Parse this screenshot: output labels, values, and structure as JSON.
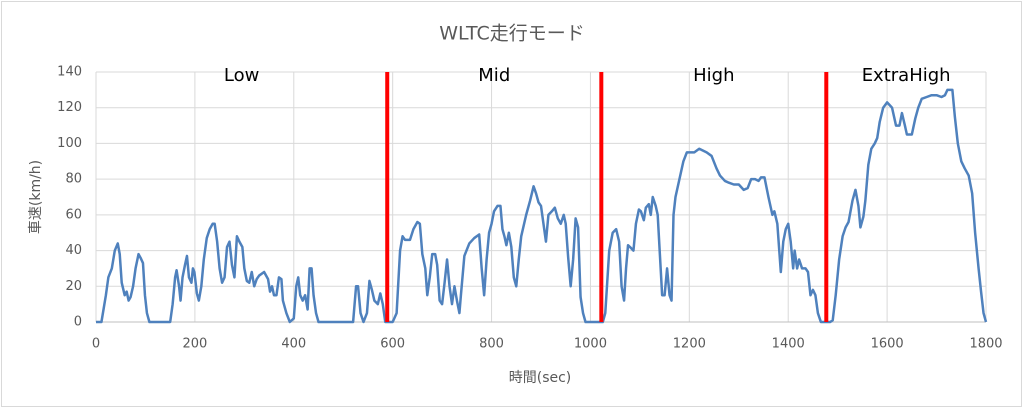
{
  "chart_data": {
    "type": "line",
    "title": "WLTC走行モード",
    "x_label": "時間(sec)",
    "y_label": "車速(km/h)",
    "x": [
      0,
      11,
      20,
      25,
      32,
      38,
      44,
      48,
      52,
      58,
      62,
      66,
      70,
      75,
      80,
      86,
      90,
      95,
      99,
      103,
      108,
      150,
      155,
      160,
      163,
      168,
      171,
      175,
      180,
      184,
      188,
      193,
      196,
      199,
      204,
      208,
      213,
      218,
      224,
      230,
      236,
      240,
      245,
      250,
      255,
      260,
      265,
      270,
      275,
      280,
      285,
      290,
      296,
      300,
      305,
      310,
      315,
      320,
      325,
      330,
      340,
      348,
      352,
      356,
      360,
      365,
      370,
      375,
      378,
      385,
      392,
      400,
      405,
      409,
      413,
      418,
      423,
      428,
      432,
      436,
      440,
      445,
      450,
      520,
      526,
      530,
      535,
      541,
      548,
      553,
      558,
      563,
      570,
      575,
      580,
      585,
      595,
      600,
      608,
      615,
      620,
      625,
      635,
      642,
      650,
      655,
      660,
      666,
      670,
      675,
      680,
      686,
      690,
      695,
      700,
      705,
      710,
      715,
      720,
      725,
      730,
      735,
      738,
      745,
      755,
      765,
      775,
      780,
      785,
      790,
      795,
      800,
      805,
      812,
      818,
      822,
      826,
      830,
      835,
      840,
      845,
      850,
      855,
      860,
      870,
      878,
      885,
      890,
      895,
      900,
      905,
      910,
      915,
      922,
      928,
      934,
      940,
      946,
      950,
      955,
      960,
      965,
      970,
      975,
      980,
      985,
      990,
      1025,
      1030,
      1038,
      1045,
      1052,
      1058,
      1063,
      1068,
      1072,
      1076,
      1080,
      1087,
      1092,
      1098,
      1102,
      1108,
      1112,
      1118,
      1122,
      1126,
      1132,
      1136,
      1140,
      1145,
      1150,
      1155,
      1160,
      1164,
      1168,
      1172,
      1180,
      1188,
      1195,
      1210,
      1220,
      1235,
      1245,
      1255,
      1262,
      1272,
      1280,
      1290,
      1300,
      1310,
      1318,
      1325,
      1333,
      1340,
      1345,
      1352,
      1360,
      1368,
      1372,
      1378,
      1385,
      1390,
      1395,
      1400,
      1405,
      1410,
      1413,
      1418,
      1422,
      1428,
      1435,
      1440,
      1445,
      1450,
      1455,
      1460,
      1466,
      1485,
      1490,
      1496,
      1503,
      1510,
      1516,
      1522,
      1530,
      1536,
      1542,
      1546,
      1552,
      1556,
      1562,
      1568,
      1575,
      1580,
      1585,
      1592,
      1600,
      1610,
      1618,
      1625,
      1630,
      1636,
      1640,
      1650,
      1657,
      1663,
      1670,
      1680,
      1690,
      1700,
      1710,
      1717,
      1722,
      1727,
      1732,
      1737,
      1743,
      1750,
      1757,
      1765,
      1772,
      1778,
      1785,
      1790,
      1795,
      1800
    ],
    "series": [
      {
        "color": "#4f81bd",
        "values": [
          0,
          0,
          15,
          25,
          30,
          40,
          44,
          38,
          22,
          15,
          17,
          12,
          14,
          20,
          30,
          38,
          36,
          33,
          15,
          5,
          0,
          0,
          10,
          25,
          29,
          20,
          12,
          25,
          32,
          37,
          25,
          22,
          30,
          28,
          16,
          12,
          20,
          35,
          47,
          52,
          55,
          55,
          45,
          30,
          22,
          25,
          42,
          45,
          32,
          25,
          48,
          45,
          42,
          30,
          23,
          22,
          28,
          20,
          24,
          26,
          28,
          24,
          17,
          20,
          15,
          15,
          25,
          24,
          12,
          5,
          0,
          2,
          20,
          25,
          15,
          12,
          15,
          7,
          30,
          30,
          15,
          5,
          0,
          0,
          20,
          20,
          5,
          0,
          5,
          23,
          18,
          12,
          10,
          16,
          10,
          0,
          0,
          0,
          5,
          40,
          48,
          46,
          46,
          52,
          56,
          55,
          38,
          30,
          15,
          25,
          38,
          38,
          32,
          12,
          10,
          22,
          35,
          20,
          10,
          20,
          12,
          5,
          15,
          37,
          44,
          47,
          49,
          30,
          15,
          35,
          50,
          55,
          62,
          65,
          65,
          52,
          48,
          43,
          50,
          42,
          25,
          20,
          35,
          48,
          60,
          68,
          76,
          72,
          67,
          65,
          55,
          45,
          60,
          62,
          64,
          58,
          55,
          60,
          55,
          36,
          20,
          35,
          58,
          53,
          14,
          5,
          0,
          0,
          5,
          40,
          50,
          52,
          45,
          20,
          12,
          30,
          43,
          42,
          40,
          55,
          63,
          62,
          57,
          64,
          66,
          60,
          70,
          65,
          60,
          40,
          15,
          15,
          30,
          15,
          12,
          60,
          70,
          80,
          90,
          95,
          95,
          97,
          95,
          93,
          86,
          82,
          79,
          78,
          77,
          77,
          74,
          75,
          80,
          80,
          79,
          81,
          81,
          70,
          60,
          62,
          55,
          28,
          45,
          52,
          55,
          45,
          30,
          40,
          30,
          35,
          30,
          30,
          28,
          15,
          18,
          15,
          5,
          0,
          0,
          1,
          15,
          35,
          48,
          53,
          56,
          68,
          74,
          65,
          53,
          59,
          68,
          88,
          97,
          100,
          103,
          112,
          120,
          123,
          120,
          110,
          110,
          117,
          110,
          105,
          105,
          114,
          120,
          125,
          126,
          127,
          127,
          126,
          127,
          130,
          130,
          130,
          115,
          100,
          90,
          86,
          82,
          72,
          50,
          30,
          17,
          5,
          0
        ]
      }
    ],
    "xlim": [
      0,
      1800
    ],
    "xticks": [
      0,
      200,
      400,
      600,
      800,
      1000,
      1200,
      1400,
      1600,
      1800
    ],
    "ylim": [
      0,
      140
    ],
    "yticks": [
      0,
      20,
      40,
      60,
      80,
      100,
      120,
      140
    ],
    "grid": true,
    "phase_boundaries": [
      589,
      1022,
      1477
    ],
    "phase_boundary_color": "#ff0000",
    "phase_labels": [
      "Low",
      "Mid",
      "High",
      "ExtraHigh"
    ]
  }
}
